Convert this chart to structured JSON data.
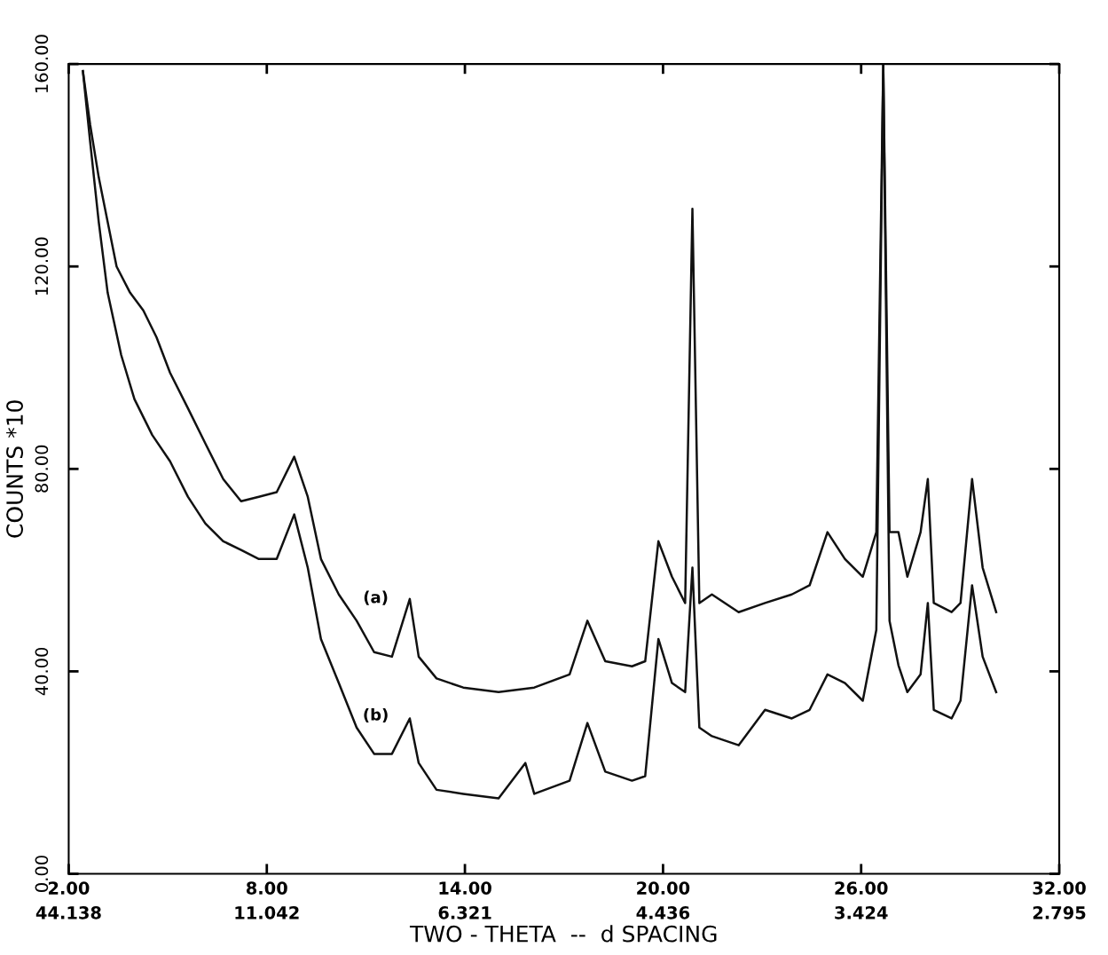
{
  "chart_data": {
    "type": "line",
    "xlabel": "TWO - THETA  --  d SPACING",
    "ylabel": "COUNTS *10",
    "xlim": [
      2,
      32
    ],
    "ylim": [
      0,
      160
    ],
    "xticks": [
      {
        "value": 2,
        "label": "2.00"
      },
      {
        "value": 8,
        "label": "8.00"
      },
      {
        "value": 14,
        "label": "14.00"
      },
      {
        "value": 20,
        "label": "20.00"
      },
      {
        "value": 26,
        "label": "26.00"
      },
      {
        "value": 32,
        "label": "32.00"
      }
    ],
    "yticks": [
      {
        "value": 0,
        "label": "0.00"
      },
      {
        "value": 40,
        "label": "40.00"
      },
      {
        "value": 80,
        "label": "80.00"
      },
      {
        "value": 120,
        "label": "120.00"
      },
      {
        "value": 160,
        "label": "160.00"
      }
    ],
    "grid": false,
    "legend": false,
    "marker": "none",
    "line_style": "solid",
    "annotations": [
      "(a)",
      "(b)",
      "44.138",
      "11.042",
      "6.321",
      "4.436",
      "3.424",
      "2.795"
    ],
    "series": [
      {
        "color": "#111111",
        "x": [
          2.43,
          2.65,
          2.91,
          3.18,
          3.45,
          3.86,
          4.26,
          4.66,
          5.07,
          5.61,
          6.14,
          6.68,
          7.22,
          7.76,
          8.3,
          8.83,
          9.24,
          9.64,
          10.18,
          10.72,
          11.25,
          11.79,
          12.33,
          12.6,
          13.14,
          13.95,
          15.02,
          16.1,
          17.17,
          17.71,
          18.25,
          19.06,
          19.46,
          19.86,
          20.27,
          20.67,
          20.89,
          21.1,
          21.48,
          22.29,
          23.09,
          23.9,
          24.44,
          24.98,
          25.51,
          26.05,
          26.46,
          26.67,
          26.86,
          27.13,
          27.4,
          27.8,
          28.02,
          28.2,
          28.74,
          29.01,
          29.36,
          29.68,
          30.09
        ],
        "values": [
          158.6,
          148,
          137.6,
          128.8,
          120,
          114.8,
          111.3,
          106,
          99,
          92,
          85,
          78,
          73.6,
          74.5,
          75.4,
          82.4,
          74.5,
          62.2,
          55.2,
          50,
          43.8,
          42.9,
          54.3,
          42.9,
          38.6,
          36.8,
          35.9,
          36.8,
          39.4,
          50,
          42,
          41,
          42,
          65.7,
          58.7,
          53.5,
          131.4,
          53.5,
          55.2,
          51.7,
          53.5,
          55.2,
          57,
          67.5,
          62.2,
          58.7,
          67.5,
          160,
          67.5,
          67.5,
          58.7,
          67.5,
          78,
          53.5,
          51.7,
          53.5,
          78,
          60.5,
          51.7
        ]
      },
      {
        "color": "#111111",
        "x": [
          2.43,
          2.65,
          2.91,
          3.18,
          3.59,
          3.99,
          4.53,
          5.07,
          5.61,
          6.14,
          6.68,
          7.22,
          7.76,
          8.3,
          8.83,
          9.24,
          9.64,
          10.18,
          10.72,
          11.25,
          11.79,
          12.33,
          12.6,
          13.14,
          13.95,
          15.02,
          15.83,
          16.1,
          17.17,
          17.71,
          18.25,
          19.06,
          19.46,
          19.86,
          20.27,
          20.67,
          20.89,
          21.1,
          21.48,
          22.29,
          23.09,
          23.9,
          24.44,
          24.98,
          25.51,
          26.05,
          26.46,
          26.67,
          26.86,
          27.13,
          27.4,
          27.8,
          28.02,
          28.2,
          28.74,
          29.01,
          29.36,
          29.68,
          30.09
        ],
        "values": [
          158.6,
          144.6,
          128.8,
          114.8,
          102.5,
          93.8,
          86.7,
          81.5,
          74.5,
          69.2,
          65.7,
          64,
          62.2,
          62.2,
          71,
          60.5,
          46.4,
          37.7,
          28.9,
          23.7,
          23.7,
          30.7,
          21.9,
          16.6,
          15.8,
          14.9,
          21.9,
          15.8,
          18.4,
          29.8,
          20.2,
          18.4,
          19.3,
          46.4,
          37.7,
          35.9,
          60.5,
          28.9,
          27.2,
          25.4,
          32.4,
          30.7,
          32.4,
          39.4,
          37.7,
          34.2,
          48.2,
          160,
          50,
          41.2,
          35.9,
          39.4,
          53.5,
          32.4,
          30.7,
          34.2,
          57,
          42.9,
          35.9
        ]
      }
    ]
  }
}
